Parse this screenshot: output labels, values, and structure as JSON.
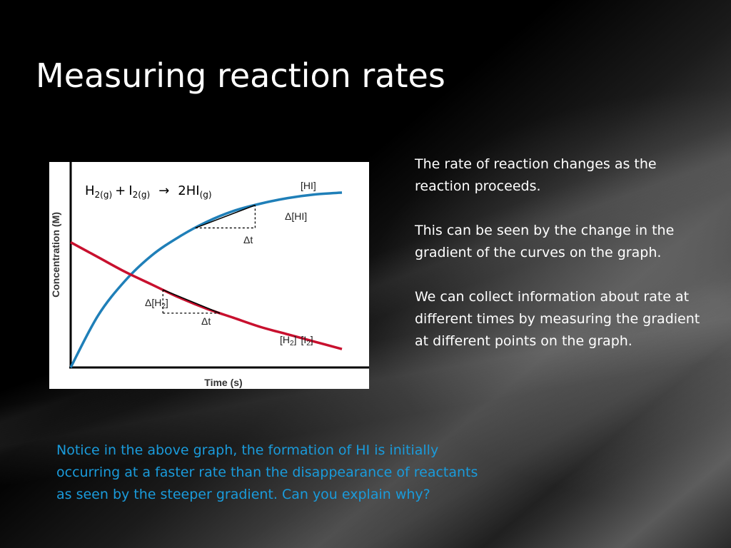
{
  "slide": {
    "title": "Measuring reaction rates",
    "paragraphs": [
      "The rate of reaction changes as the reaction proceeds.",
      "This can be seen by the change in the gradient of the curves on the graph.",
      "We can collect information  about rate at different times  by measuring the gradient at different points on the graph."
    ],
    "note_lines": [
      "Notice in the above graph, the formation of HI is initially",
      "occurring at a faster rate than the disappearance of reactants",
      "as seen by the steeper gradient.  Can you explain why?"
    ]
  },
  "chart_data": {
    "type": "line",
    "equation": {
      "reactant1": "H",
      "r1_sub": "2(g)",
      "plus": "+",
      "reactant2": "I",
      "r2_sub": "2(g)",
      "arrow": "→",
      "product": "2HI",
      "p_sub": "(g)"
    },
    "xlabel": "Time (s)",
    "ylabel": "Concentration (M)",
    "ticks_shown": false,
    "series": [
      {
        "name": "[HI]",
        "color": "#1f7fb8",
        "x": [
          0,
          0.1,
          0.2,
          0.3,
          0.4,
          0.5,
          0.6,
          0.7,
          0.8,
          0.9,
          1.0
        ],
        "y": [
          0,
          0.28,
          0.47,
          0.61,
          0.71,
          0.79,
          0.85,
          0.89,
          0.92,
          0.94,
          0.95
        ]
      },
      {
        "name": "[H2] [I2]",
        "color": "#c8102e",
        "x": [
          0,
          0.1,
          0.2,
          0.3,
          0.4,
          0.5,
          0.6,
          0.7,
          0.8,
          0.9,
          1.0
        ],
        "y": [
          0.68,
          0.6,
          0.52,
          0.45,
          0.38,
          0.32,
          0.27,
          0.22,
          0.18,
          0.14,
          0.1
        ]
      }
    ],
    "annotations": [
      {
        "series": "[HI]",
        "dy_label": "Δ[HI]",
        "dx_label": "Δt",
        "x1": 0.46,
        "x2": 0.68
      },
      {
        "series": "[H2] [I2]",
        "dy_label": "Δ[H",
        "dy_sub": "2",
        "dy_end": "]",
        "dx_label": "Δt",
        "x1": 0.34,
        "x2": 0.55
      }
    ],
    "series_labels": {
      "hi": "[HI]",
      "h2": "[H",
      "h2_sub": "2",
      "h2_end": "]",
      "i2": "[I",
      "i2_sub": "2",
      "i2_end": "]"
    }
  }
}
